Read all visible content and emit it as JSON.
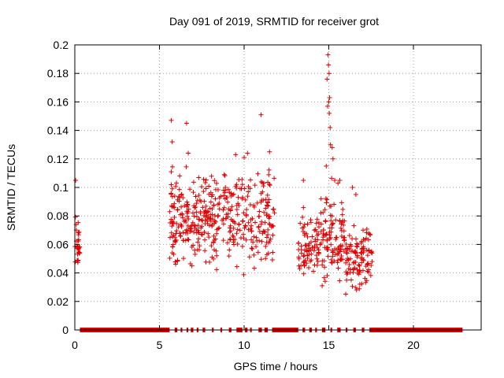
{
  "chart_data": {
    "type": "scatter",
    "title": "Day 091 of 2019, SRMTID for receiver grot",
    "xlabel": "GPS time / hours",
    "ylabel": "SRMTID / TECUs",
    "xlim": [
      0,
      24
    ],
    "ylim": [
      0,
      0.2
    ],
    "x_ticks": [
      0,
      5,
      10,
      15,
      20
    ],
    "y_ticks": [
      0,
      0.02,
      0.04,
      0.06,
      0.08,
      0.1,
      0.12,
      0.14,
      0.16,
      0.18,
      0.2
    ],
    "grid": true,
    "marker": "plus",
    "color": "#e00000",
    "clusters": [
      {
        "x_range": [
          0.0,
          0.3
        ],
        "y_range": [
          0.033,
          0.087
        ],
        "count": 30
      },
      {
        "x_range": [
          5.6,
          8.0
        ],
        "y_range": [
          0.03,
          0.12
        ],
        "count": 190
      },
      {
        "x_range": [
          8.0,
          11.8
        ],
        "y_range": [
          0.03,
          0.125
        ],
        "count": 240
      },
      {
        "x_range": [
          13.2,
          14.4
        ],
        "y_range": [
          0.025,
          0.09
        ],
        "count": 80
      },
      {
        "x_range": [
          14.4,
          16.0
        ],
        "y_range": [
          0.02,
          0.11
        ],
        "count": 120
      },
      {
        "x_range": [
          16.0,
          17.6
        ],
        "y_range": [
          0.022,
          0.08
        ],
        "count": 110
      }
    ],
    "outliers": [
      {
        "x": 0.05,
        "y": 0.105
      },
      {
        "x": 5.7,
        "y": 0.147
      },
      {
        "x": 5.75,
        "y": 0.132
      },
      {
        "x": 6.6,
        "y": 0.145
      },
      {
        "x": 11.0,
        "y": 0.151
      },
      {
        "x": 6.7,
        "y": 0.124
      },
      {
        "x": 11.5,
        "y": 0.125
      },
      {
        "x": 13.5,
        "y": 0.105
      },
      {
        "x": 14.95,
        "y": 0.193
      },
      {
        "x": 14.98,
        "y": 0.186
      },
      {
        "x": 15.02,
        "y": 0.18
      },
      {
        "x": 14.9,
        "y": 0.176
      },
      {
        "x": 15.05,
        "y": 0.163
      },
      {
        "x": 15.0,
        "y": 0.16
      },
      {
        "x": 14.93,
        "y": 0.157
      },
      {
        "x": 15.03,
        "y": 0.152
      },
      {
        "x": 15.08,
        "y": 0.142
      },
      {
        "x": 15.1,
        "y": 0.13
      },
      {
        "x": 15.2,
        "y": 0.128
      },
      {
        "x": 15.25,
        "y": 0.12
      },
      {
        "x": 15.35,
        "y": 0.105
      },
      {
        "x": 14.85,
        "y": 0.115
      },
      {
        "x": 16.4,
        "y": 0.1
      },
      {
        "x": 16.6,
        "y": 0.095
      },
      {
        "x": 9.5,
        "y": 0.123
      },
      {
        "x": 10.0,
        "y": 0.121
      },
      {
        "x": 10.2,
        "y": 0.124
      }
    ],
    "zero_line_segments": [
      [
        0.3,
        5.6
      ],
      [
        5.9,
        6.05
      ],
      [
        6.25,
        6.35
      ],
      [
        6.6,
        6.7
      ],
      [
        6.85,
        7.0
      ],
      [
        7.2,
        7.3
      ],
      [
        7.55,
        7.7
      ],
      [
        8.1,
        8.2
      ],
      [
        8.6,
        8.7
      ],
      [
        9.1,
        9.25
      ],
      [
        9.55,
        9.9
      ],
      [
        10.05,
        10.2
      ],
      [
        10.35,
        10.45
      ],
      [
        10.85,
        11.05
      ],
      [
        11.2,
        11.4
      ],
      [
        11.65,
        13.2
      ],
      [
        13.45,
        13.6
      ],
      [
        13.85,
        14.0
      ],
      [
        14.2,
        14.3
      ],
      [
        14.6,
        14.8
      ],
      [
        15.1,
        15.2
      ],
      [
        15.5,
        15.7
      ],
      [
        16.0,
        16.1
      ],
      [
        16.45,
        16.6
      ],
      [
        16.95,
        17.1
      ],
      [
        17.4,
        22.9
      ]
    ]
  }
}
